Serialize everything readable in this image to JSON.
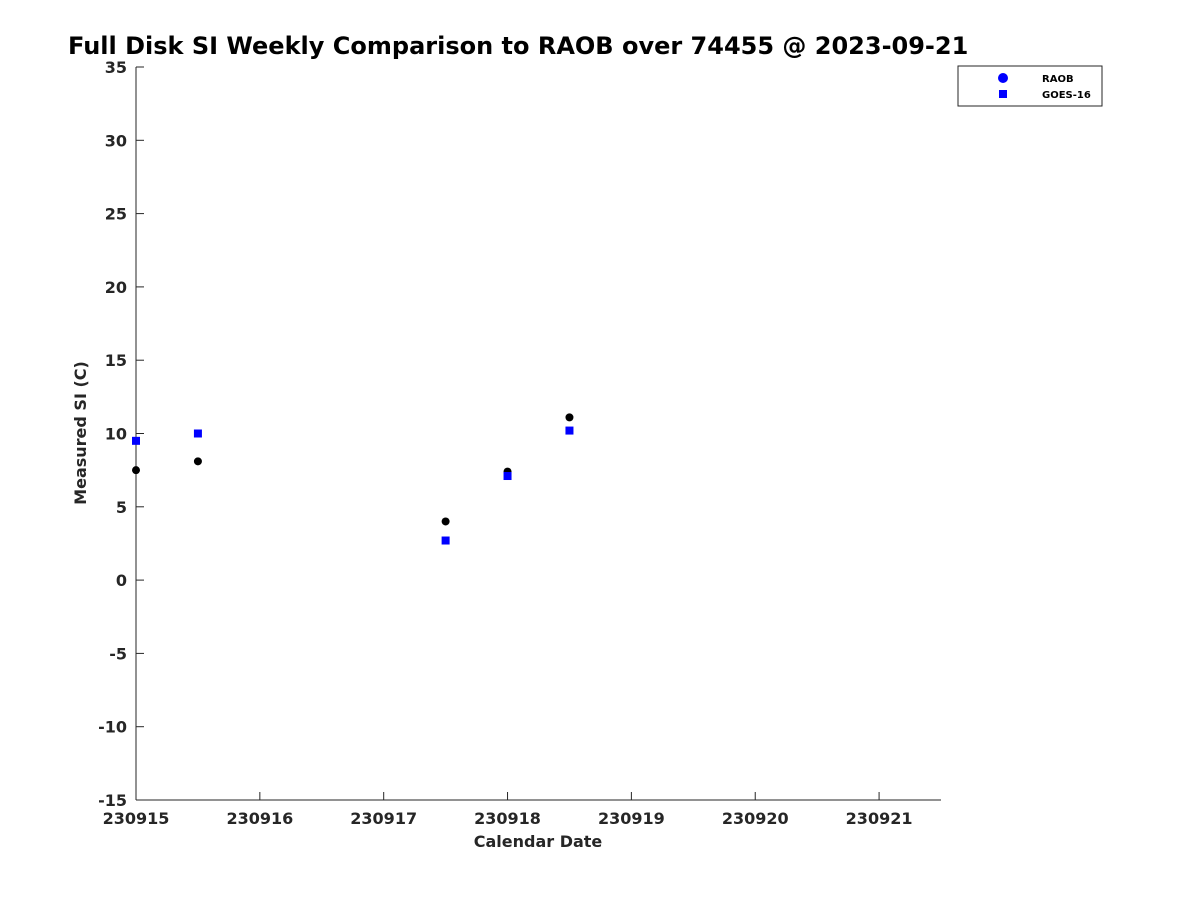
{
  "chart_data": {
    "type": "scatter",
    "title": "Full Disk SI Weekly Comparison to RAOB over 74455 @ 2023-09-21",
    "xlabel": "Calendar Date",
    "ylabel": "Measured SI (C)",
    "xlim": [
      "2023-09-15T00:00",
      "2023-09-21T12:00"
    ],
    "ylim": [
      -15,
      35
    ],
    "x_ticks": [
      "2023-09-15",
      "2023-09-16",
      "2023-09-17",
      "2023-09-18",
      "2023-09-19",
      "2023-09-20",
      "2023-09-21"
    ],
    "x_tick_labels": [
      "230915",
      "230916",
      "230917",
      "230918",
      "230919",
      "230920",
      "230921"
    ],
    "y_ticks": [
      35,
      30,
      25,
      20,
      15,
      10,
      5,
      0,
      -5,
      -10,
      -15
    ],
    "grid": false,
    "legend_position": "top-right",
    "series": [
      {
        "name": "RAOB",
        "marker": "circle",
        "color": "#000000",
        "legend_color": "#0000ff",
        "points": [
          {
            "x": "2023-09-15T00:00",
            "y": 7.5
          },
          {
            "x": "2023-09-15T12:00",
            "y": 8.1
          },
          {
            "x": "2023-09-17T12:00",
            "y": 4.0
          },
          {
            "x": "2023-09-18T00:00",
            "y": 7.4
          },
          {
            "x": "2023-09-18T12:00",
            "y": 11.1
          }
        ]
      },
      {
        "name": "GOES-16",
        "marker": "square",
        "color": "#0000ff",
        "legend_color": "#0000ff",
        "points": [
          {
            "x": "2023-09-15T00:00",
            "y": 9.5
          },
          {
            "x": "2023-09-15T12:00",
            "y": 10.0
          },
          {
            "x": "2023-09-17T12:00",
            "y": 2.7
          },
          {
            "x": "2023-09-18T00:00",
            "y": 7.1
          },
          {
            "x": "2023-09-18T12:00",
            "y": 10.2
          }
        ]
      }
    ]
  }
}
